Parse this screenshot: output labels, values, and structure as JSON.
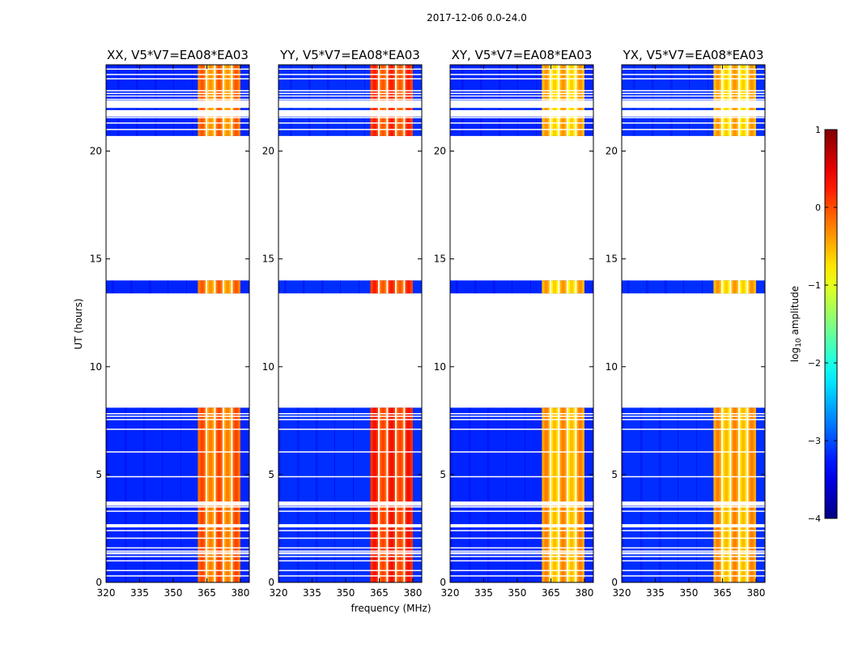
{
  "chart_data": {
    "type": "heatmap",
    "suptitle": "2017-12-06 0.0-24.0",
    "xlabel": "frequency (MHz)",
    "ylabel": "UT (hours)",
    "xlim": [
      320,
      384
    ],
    "ylim": [
      0,
      24
    ],
    "xticks": [
      320,
      335,
      350,
      365,
      380
    ],
    "yticks": [
      0,
      5,
      10,
      15,
      20
    ],
    "panels": [
      {
        "title": "XX, V5*V7=EA08*EA03",
        "polarization": "XX",
        "band_start_mhz": 361,
        "band_end_mhz": 380
      },
      {
        "title": "YY, V5*V7=EA08*EA03",
        "polarization": "YY",
        "band_start_mhz": 361,
        "band_end_mhz": 380
      },
      {
        "title": "XY, V5*V7=EA08*EA03",
        "polarization": "XY",
        "band_start_mhz": 361,
        "band_end_mhz": 380
      },
      {
        "title": "YX, V5*V7=EA08*EA03",
        "polarization": "YX",
        "band_start_mhz": 361,
        "band_end_mhz": 380
      }
    ],
    "data_intervals_ut_hours": [
      [
        0.0,
        8.1
      ],
      [
        13.4,
        14.0
      ],
      [
        20.7,
        24.0
      ]
    ],
    "gap_lines_ut_hours": [
      0.3,
      0.55,
      1.0,
      1.2,
      1.45,
      1.6,
      2.05,
      2.4,
      2.6,
      3.3,
      3.5,
      3.65,
      4.9,
      6.05,
      7.1,
      7.55,
      7.7,
      21.0,
      21.3,
      21.55,
      21.7,
      22.4,
      22.55,
      22.8,
      23.35,
      23.55,
      23.8
    ],
    "gap_bands_ut_hours": [
      [
        1.3,
        1.4
      ],
      [
        2.55,
        2.7
      ],
      [
        3.55,
        3.75
      ],
      [
        7.8,
        7.85
      ],
      [
        21.6,
        21.9
      ],
      [
        22.0,
        22.35
      ],
      [
        22.65,
        22.7
      ]
    ],
    "colorbar": {
      "label": "log₁₀ amplitude",
      "label_main": "log",
      "label_sub": "10",
      "label_rest": " amplitude",
      "vmin": -4,
      "vmax": 1,
      "ticks": [
        -4,
        -3,
        -2,
        -1,
        0,
        1
      ],
      "tick_labels": [
        "−4",
        "−3",
        "−2",
        "−1",
        "0",
        "1"
      ],
      "colormap": "jet"
    }
  }
}
